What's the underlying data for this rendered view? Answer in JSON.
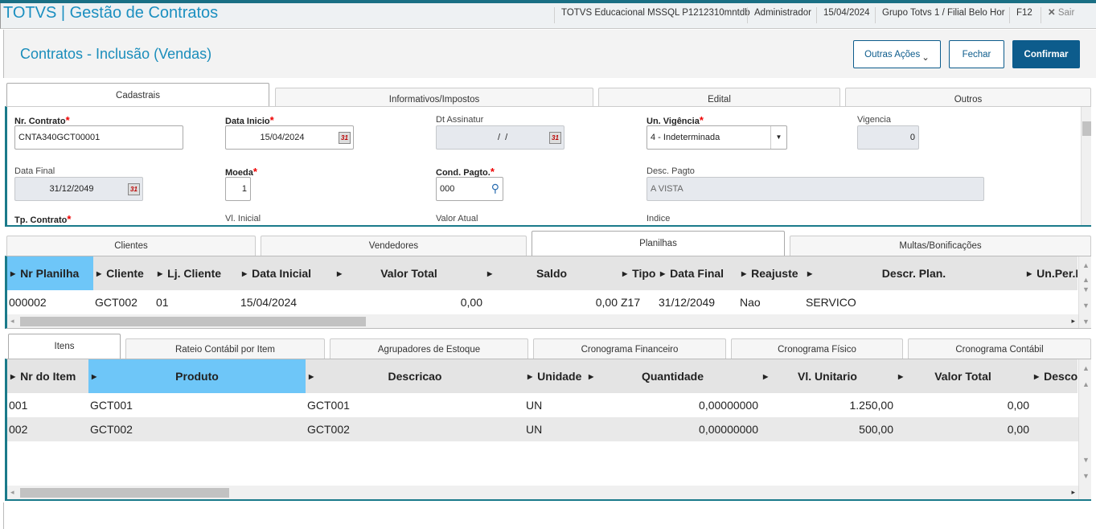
{
  "app": {
    "title": "TOTVS | Gestão de Contratos",
    "environment": "TOTVS Educacional MSSQL P1212310mntdb",
    "user": "Administrador",
    "date": "15/04/2024",
    "branch": "Grupo Totvs 1 / Filial Belo Hor",
    "shortcut": "F12",
    "exit_label": "Sair"
  },
  "page": {
    "title": "Contratos - Inclusão (Vendas)",
    "other_actions": "Outras Ações",
    "close": "Fechar",
    "confirm": "Confirmar"
  },
  "main_tabs": [
    "Cadastrais",
    "Informativos/Impostos",
    "Edital",
    "Outros"
  ],
  "form": {
    "nr_contrato": {
      "label": "Nr. Contrato",
      "value": "CNTA340GCT00001"
    },
    "data_inicio": {
      "label": "Data Inicio",
      "value": "15/04/2024"
    },
    "dt_assinatur": {
      "label": "Dt Assinatur",
      "value": "  /  /"
    },
    "un_vigencia": {
      "label": "Un. Vigência",
      "value": "4 - Indeterminada"
    },
    "vigencia": {
      "label": "Vigencia",
      "value": "0"
    },
    "data_final": {
      "label": "Data Final",
      "value": "31/12/2049"
    },
    "moeda": {
      "label": "Moeda",
      "value": "1"
    },
    "cond_pagto": {
      "label": "Cond. Pagto.",
      "value": "000"
    },
    "desc_pagto": {
      "label": "Desc. Pagto",
      "value": "A VISTA"
    },
    "tp_contrato": {
      "label": "Tp. Contrato"
    },
    "vl_inicial": {
      "label": "Vl. Inicial"
    },
    "valor_atual": {
      "label": "Valor Atual"
    },
    "indice": {
      "label": "Indice"
    },
    "calendar_icon_text": "31"
  },
  "sub_tabs": [
    "Clientes",
    "Vendedores",
    "Planilhas",
    "Multas/Bonificações"
  ],
  "planilhas": {
    "columns": [
      "Nr Planilha",
      "Cliente",
      "Lj. Cliente",
      "Data Inicial",
      "Valor Total",
      "Saldo",
      "Tipo",
      "Data Final",
      "Reajuste",
      "Descr. Plan.",
      "Un.Per.R"
    ],
    "rows": [
      [
        "000002",
        "GCT002",
        "01",
        "15/04/2024",
        "0,00",
        "0,00",
        "Z17",
        "31/12/2049",
        "Nao",
        "SERVICO",
        ""
      ]
    ]
  },
  "item_tabs": [
    "Itens",
    "Rateio Contábil por Item",
    "Agrupadores de Estoque",
    "Cronograma Financeiro",
    "Cronograma Físico",
    "Cronograma Contábil"
  ],
  "itens": {
    "columns": [
      "Nr do Item",
      "Produto",
      "Descricao",
      "Unidade",
      "Quantidade",
      "Vl. Unitario",
      "Valor Total",
      "Desconto"
    ],
    "rows": [
      [
        "001",
        "GCT001",
        "GCT001",
        "UN",
        "0,00000000",
        "1.250,00",
        "0,00",
        ""
      ],
      [
        "002",
        "GCT002",
        "GCT002",
        "UN",
        "0,00000000",
        "500,00",
        "0,00",
        ""
      ]
    ]
  },
  "colors": {
    "accent": "#1b8fc0",
    "primary_button": "#0d5c8c",
    "selected_column": "#6ec6f8",
    "panel_border": "#1a7a8a"
  }
}
